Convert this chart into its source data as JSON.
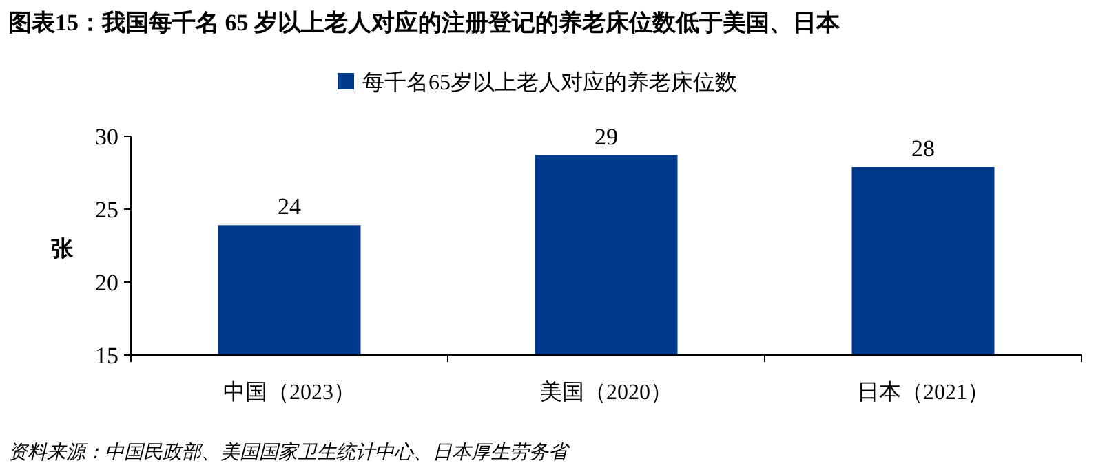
{
  "chart_data": {
    "type": "bar",
    "title": "图表15：我国每千名 65 岁以上老人对应的注册登记的养老床位数低于美国、日本",
    "categories": [
      "中国（2023）",
      "美国（2020）",
      "日本（2021）"
    ],
    "series": [
      {
        "name": "每千名65岁以上老人对应的养老床位数",
        "color": "#003a8c",
        "values": [
          23.9,
          28.7,
          27.9
        ],
        "value_labels": [
          "24",
          "29",
          "28"
        ]
      }
    ],
    "ylabel": "张",
    "ylim": [
      15,
      30
    ],
    "yticks": [
      15,
      20,
      25,
      30
    ],
    "grid": false,
    "legend": "top",
    "annotations": [
      "资料来源：中国民政部、美国国家卫生统计中心、日本厚生劳务省"
    ]
  }
}
